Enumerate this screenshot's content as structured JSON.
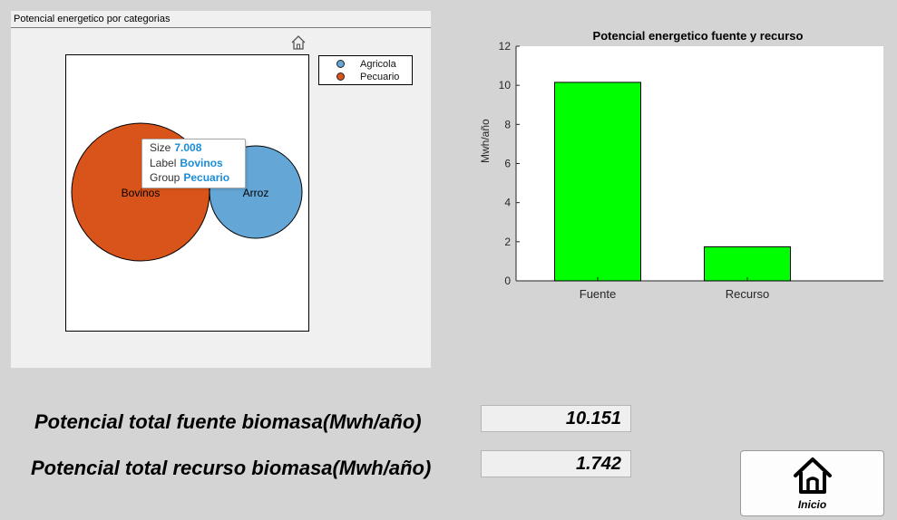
{
  "panel": {
    "title": "Potencial energetico por categorias"
  },
  "bubble_chart": {
    "legend": [
      {
        "name": "Agricola",
        "color": "#64a6d6"
      },
      {
        "name": "Pecuario",
        "color": "#d9541a"
      }
    ],
    "bubbles": [
      {
        "label": "Bovinos",
        "group": "Pecuario",
        "size": 7.008,
        "color": "#d9541a"
      },
      {
        "label": "Arroz",
        "group": "Agricola",
        "color": "#64a6d6"
      }
    ],
    "tooltip": {
      "size_label": "Size",
      "size_value": "7.008",
      "label_label": "Label",
      "label_value": "Bovinos",
      "group_label": "Group",
      "group_value": "Pecuario"
    }
  },
  "chart_data": {
    "type": "bar",
    "title": "Potencial energetico fuente y recurso",
    "xlabel": "",
    "ylabel": "Mwh/año",
    "categories": [
      "Fuente",
      "Recurso"
    ],
    "values": [
      10.151,
      1.742
    ],
    "ylim": [
      0,
      12
    ],
    "yticks": [
      0,
      2,
      4,
      6,
      8,
      10,
      12
    ],
    "bar_color": "#00ff00",
    "grid": false
  },
  "totals": {
    "fuente_label": "Potencial total fuente biomasa(Mwh/año)",
    "fuente_value": "10.151",
    "recurso_label": "Potencial total recurso biomasa(Mwh/año)",
    "recurso_value": "1.742"
  },
  "home_button": {
    "label": "Inicio",
    "icon": "home-icon"
  }
}
